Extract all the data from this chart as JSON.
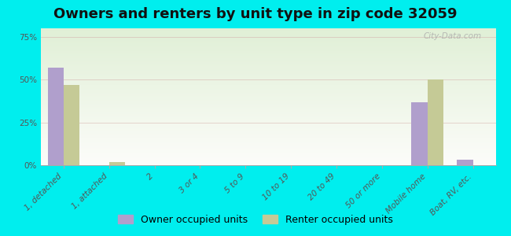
{
  "title": "Owners and renters by unit type in zip code 32059",
  "categories": [
    "1, detached",
    "1, attached",
    "2",
    "3 or 4",
    "5 to 9",
    "10 to 19",
    "20 to 49",
    "50 or more",
    "Mobile home",
    "Boat, RV, etc."
  ],
  "owner_values": [
    57,
    0,
    0,
    0,
    0,
    0,
    0,
    0,
    37,
    3
  ],
  "renter_values": [
    47,
    2,
    0,
    0,
    0,
    0,
    0,
    0,
    50,
    0
  ],
  "owner_color": "#b09fcc",
  "renter_color": "#c5ca96",
  "background_color": "#00eeee",
  "ylabel_ticks": [
    "0%",
    "25%",
    "50%",
    "75%"
  ],
  "ytick_values": [
    0,
    25,
    50,
    75
  ],
  "ylim": [
    0,
    80
  ],
  "bar_width": 0.35,
  "watermark": "City-Data.com",
  "legend_owner": "Owner occupied units",
  "legend_renter": "Renter occupied units",
  "title_fontsize": 13,
  "tick_fontsize": 7.5,
  "legend_fontsize": 9
}
